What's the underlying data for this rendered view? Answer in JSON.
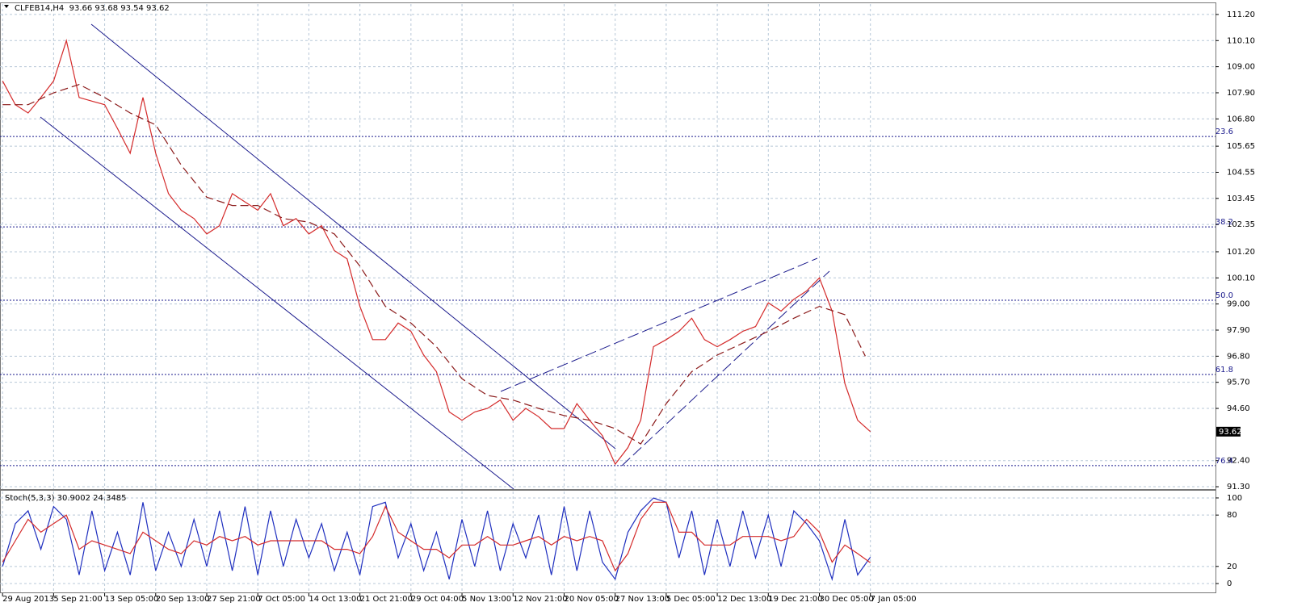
{
  "chart_data": [
    {
      "type": "line",
      "title": "CLFEB14,H4  93.66 93.68 93.54 93.62",
      "xlim": [
        -0.05,
        23.76
      ],
      "xticks": [
        {
          "value": 0,
          "label": "29 Aug 2013"
        },
        {
          "value": 1,
          "label": "5 Sep 21:00"
        },
        {
          "value": 2,
          "label": "13 Sep 05:00"
        },
        {
          "value": 3,
          "label": "20 Sep 13:00"
        },
        {
          "value": 4,
          "label": "27 Sep 21:00"
        },
        {
          "value": 5,
          "label": "7 Oct 05:00"
        },
        {
          "value": 6,
          "label": "14 Oct 13:00"
        },
        {
          "value": 7,
          "label": "21 Oct 21:00"
        },
        {
          "value": 8,
          "label": "29 Oct 04:00"
        },
        {
          "value": 9,
          "label": "5 Nov 13:00"
        },
        {
          "value": 10,
          "label": "12 Nov 21:00"
        },
        {
          "value": 11,
          "label": "20 Nov 05:00"
        },
        {
          "value": 12,
          "label": "27 Nov 13:00"
        },
        {
          "value": 13,
          "label": "5 Dec 05:00"
        },
        {
          "value": 14,
          "label": "12 Dec 13:00"
        },
        {
          "value": 15,
          "label": "19 Dec 21:00"
        },
        {
          "value": 16,
          "label": "30 Dec 05:00"
        },
        {
          "value": 17,
          "label": "7 Jan 05:00"
        }
      ],
      "ylim": [
        91.2,
        111.64
      ],
      "yticks": [
        {
          "value": 111.2,
          "label": "111.20"
        },
        {
          "value": 110.1,
          "label": "110.10"
        },
        {
          "value": 109,
          "label": "109.00"
        },
        {
          "value": 107.9,
          "label": "107.90"
        },
        {
          "value": 106.8,
          "label": "106.80"
        },
        105.65,
        104.55,
        103.45,
        102.35,
        {
          "value": 101.2,
          "label": "101.20"
        },
        {
          "value": 100.1,
          "label": "100.10"
        },
        {
          "value": 99,
          "label": "99.00"
        },
        {
          "value": 97.9,
          "label": "97.90"
        },
        {
          "value": 96.8,
          "label": "96.80"
        },
        {
          "value": 95.7,
          "label": "95.70"
        },
        {
          "value": 94.6,
          "label": "94.60"
        },
        {
          "value": 92.4,
          "label": "92.40"
        },
        {
          "value": 91.3,
          "label": "91.30"
        }
      ],
      "grid": true,
      "fib_levels": [
        {
          "value": 106.06,
          "label": "23.6"
        },
        {
          "value": 102.25,
          "label": "38.2"
        },
        {
          "value": 99.16,
          "label": "50.0"
        },
        {
          "value": 96.03,
          "label": "61.8"
        },
        {
          "value": 92.19,
          "label": "76.4"
        }
      ],
      "last_price": 93.62,
      "series": [
        {
          "color": "#d42a2a",
          "x": [
            0,
            0.25,
            0.5,
            0.75,
            1,
            1.25,
            1.5,
            1.75,
            2,
            2.25,
            2.5,
            2.75,
            3,
            3.25,
            3.5,
            3.75,
            4,
            4.25,
            4.5,
            4.75,
            5,
            5.25,
            5.5,
            5.75,
            6,
            6.25,
            6.5,
            6.75,
            7,
            7.25,
            7.5,
            7.75,
            8,
            8.25,
            8.5,
            8.75,
            9,
            9.25,
            9.5,
            9.75,
            10,
            10.25,
            10.5,
            10.75,
            11,
            11.25,
            11.5,
            11.75,
            12,
            12.25,
            12.5,
            12.75,
            13,
            13.25,
            13.5,
            13.75,
            14,
            14.25,
            14.5,
            14.75,
            15,
            15.25,
            15.5,
            15.75,
            16,
            16.25,
            16.5,
            16.75,
            17
          ],
          "values": [
            108.4,
            107.4,
            107.05,
            107.7,
            108.4,
            110.1,
            107.7,
            107.55,
            107.4,
            106.4,
            105.35,
            107.7,
            105.35,
            103.65,
            102.95,
            102.6,
            101.95,
            102.3,
            103.65,
            103.3,
            102.95,
            103.65,
            102.3,
            102.6,
            101.95,
            102.3,
            101.25,
            100.9,
            98.9,
            97.5,
            97.5,
            98.2,
            97.85,
            96.85,
            96.15,
            94.45,
            94.1,
            94.45,
            94.6,
            94.95,
            94.1,
            94.6,
            94.25,
            93.75,
            93.75,
            94.8,
            94.1,
            93.45,
            92.25,
            92.95,
            94.1,
            97.2,
            97.5,
            97.85,
            98.4,
            97.5,
            97.2,
            97.5,
            97.85,
            98.05,
            99.05,
            98.7,
            99.2,
            99.55,
            100.1,
            98.7,
            95.65,
            94.1,
            93.62
          ]
        },
        {
          "color": "#8b1a1a",
          "dashed": true,
          "x": [
            0,
            0.5,
            1,
            1.5,
            2,
            2.5,
            3,
            3.5,
            4,
            4.5,
            5,
            5.5,
            6,
            6.5,
            7,
            7.5,
            8,
            8.5,
            9,
            9.5,
            10,
            10.5,
            11,
            11.5,
            12,
            12.5,
            13,
            13.5,
            14,
            14.5,
            15,
            15.5,
            16,
            16.5,
            16.9
          ],
          "values": [
            107.4,
            107.4,
            107.9,
            108.25,
            107.7,
            107.05,
            106.55,
            104.85,
            103.5,
            103.15,
            103.15,
            102.6,
            102.45,
            101.95,
            100.6,
            98.9,
            98.2,
            97.2,
            95.85,
            95.15,
            94.95,
            94.6,
            94.3,
            94.1,
            93.75,
            93.1,
            94.8,
            96.15,
            96.85,
            97.35,
            97.85,
            98.4,
            98.9,
            98.55,
            96.8
          ]
        }
      ]
    },
    {
      "type": "line",
      "title": "Stoch(5,3,3) 30.9002 24.3485",
      "ylim": [
        -9.4,
        107.5
      ],
      "yticks": [
        100,
        80,
        20,
        0
      ],
      "series": [
        {
          "color": "#1f2fbf",
          "x": [
            0,
            0.25,
            0.5,
            0.75,
            1,
            1.25,
            1.5,
            1.75,
            2,
            2.25,
            2.5,
            2.75,
            3,
            3.25,
            3.5,
            3.75,
            4,
            4.25,
            4.5,
            4.75,
            5,
            5.25,
            5.5,
            5.75,
            6,
            6.25,
            6.5,
            6.75,
            7,
            7.25,
            7.5,
            7.75,
            8,
            8.25,
            8.5,
            8.75,
            9,
            9.25,
            9.5,
            9.75,
            10,
            10.25,
            10.5,
            10.75,
            11,
            11.25,
            11.5,
            11.75,
            12,
            12.25,
            12.5,
            12.75,
            13,
            13.25,
            13.5,
            13.75,
            14,
            14.25,
            14.5,
            14.75,
            15,
            15.25,
            15.5,
            15.75,
            16,
            16.25,
            16.5,
            16.75,
            17
          ],
          "values": [
            20,
            70,
            85,
            40,
            90,
            75,
            10,
            85,
            15,
            60,
            10,
            95,
            15,
            60,
            20,
            75,
            20,
            85,
            15,
            90,
            10,
            85,
            20,
            75,
            30,
            70,
            15,
            60,
            10,
            90,
            95,
            30,
            70,
            15,
            60,
            5,
            75,
            20,
            85,
            15,
            70,
            30,
            80,
            10,
            90,
            15,
            85,
            25,
            5,
            60,
            85,
            100,
            95,
            30,
            85,
            10,
            75,
            20,
            85,
            30,
            80,
            20,
            85,
            70,
            50,
            5,
            75,
            10,
            30.9002
          ]
        },
        {
          "color": "#d42a2a",
          "x": [
            0,
            0.25,
            0.5,
            0.75,
            1,
            1.25,
            1.5,
            1.75,
            2,
            2.25,
            2.5,
            2.75,
            3,
            3.25,
            3.5,
            3.75,
            4,
            4.25,
            4.5,
            4.75,
            5,
            5.25,
            5.5,
            5.75,
            6,
            6.25,
            6.5,
            6.75,
            7,
            7.25,
            7.5,
            7.75,
            8,
            8.25,
            8.5,
            8.75,
            9,
            9.25,
            9.5,
            9.75,
            10,
            10.25,
            10.5,
            10.75,
            11,
            11.25,
            11.5,
            11.75,
            12,
            12.25,
            12.5,
            12.75,
            13,
            13.25,
            13.5,
            13.75,
            14,
            14.25,
            14.5,
            14.75,
            15,
            15.25,
            15.5,
            15.75,
            16,
            16.25,
            16.5,
            16.75,
            17
          ],
          "values": [
            25,
            50,
            75,
            60,
            70,
            80,
            40,
            50,
            45,
            40,
            35,
            60,
            50,
            40,
            35,
            50,
            45,
            55,
            50,
            55,
            45,
            50,
            50,
            50,
            50,
            50,
            40,
            40,
            35,
            55,
            90,
            60,
            50,
            40,
            40,
            30,
            45,
            45,
            55,
            45,
            45,
            50,
            55,
            45,
            55,
            50,
            55,
            50,
            15,
            35,
            75,
            95,
            95,
            60,
            60,
            45,
            45,
            45,
            55,
            55,
            55,
            50,
            55,
            75,
            60,
            25,
            45,
            35,
            24.3485
          ]
        }
      ]
    }
  ]
}
